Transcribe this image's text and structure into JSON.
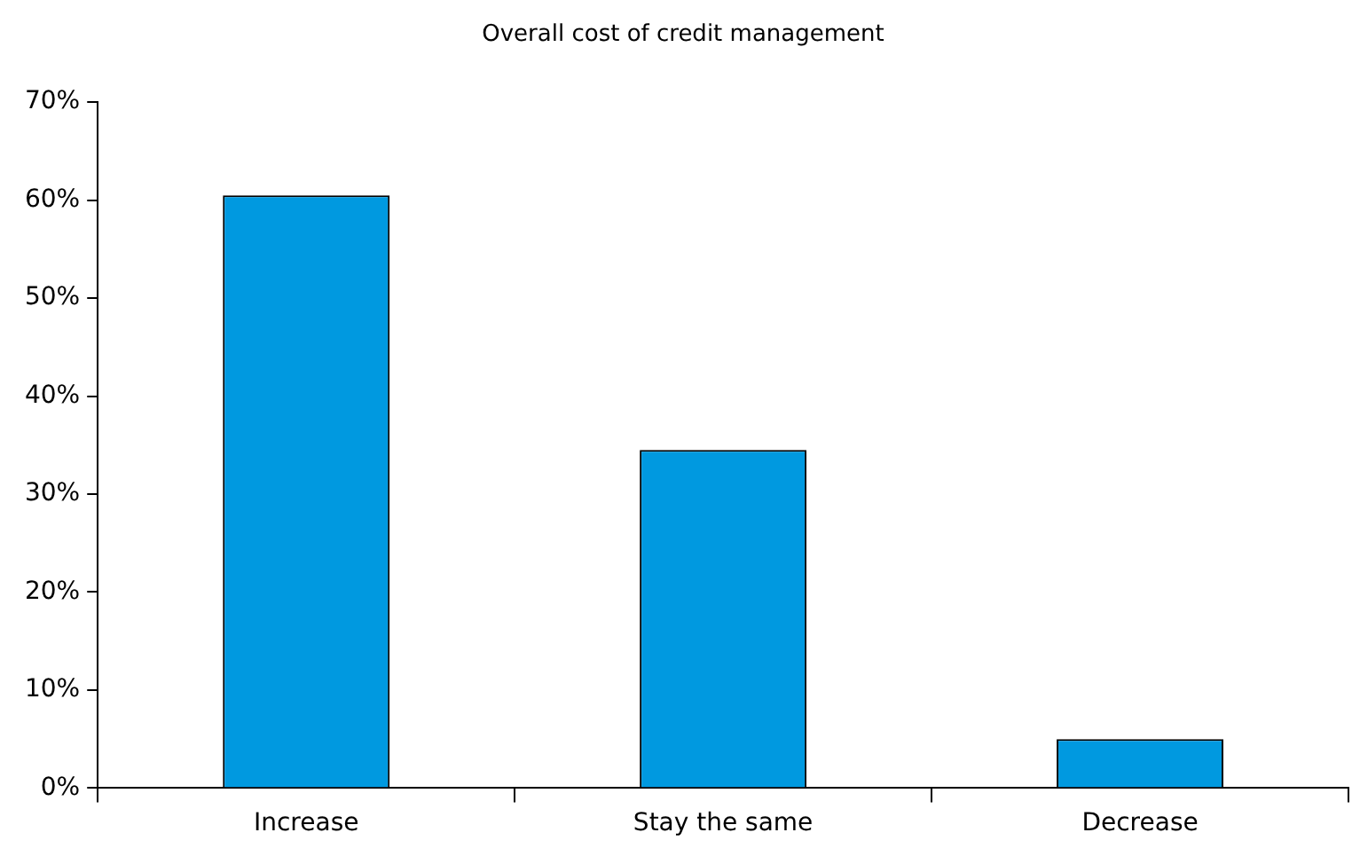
{
  "chart_data": {
    "type": "bar",
    "title": "Overall cost of credit management",
    "categories": [
      "Increase",
      "Stay the same",
      "Decrease"
    ],
    "values": [
      60.5,
      34.5,
      5
    ],
    "color": "#0099e0",
    "ylim": [
      0,
      70
    ],
    "yticks": [
      {
        "value": 0,
        "label": "0%"
      },
      {
        "value": 10,
        "label": "10%"
      },
      {
        "value": 20,
        "label": "20%"
      },
      {
        "value": 30,
        "label": "30%"
      },
      {
        "value": 40,
        "label": "40%"
      },
      {
        "value": 50,
        "label": "50%"
      },
      {
        "value": 60,
        "label": "60%"
      },
      {
        "value": 70,
        "label": "70%"
      }
    ],
    "grid": false,
    "legend": false
  }
}
